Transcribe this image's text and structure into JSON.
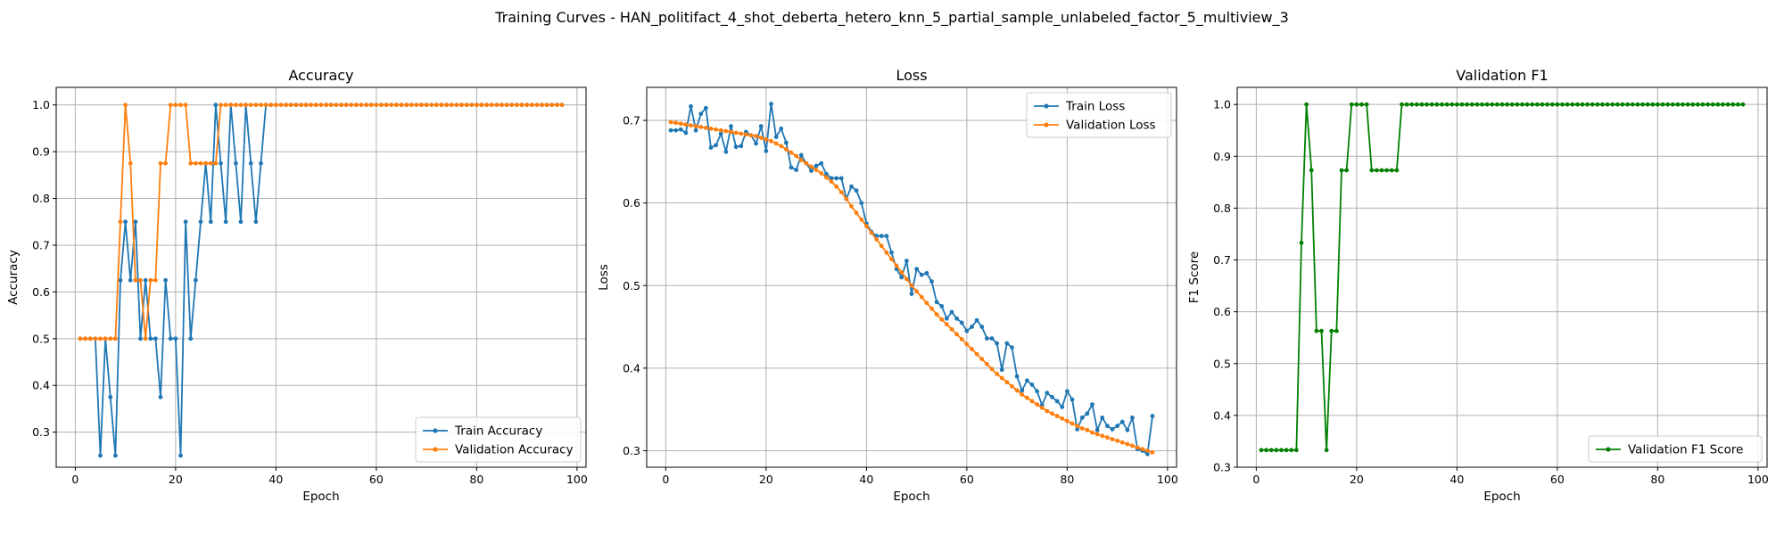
{
  "figure": {
    "suptitle": "Training Curves - HAN_politifact_4_shot_deberta_hetero_knn_5_partial_sample_unlabeled_factor_5_multiview_3"
  },
  "colors": {
    "train": "#1f77b4",
    "validation": "#ff7f0e",
    "f1": "#008000"
  },
  "chart_data": [
    {
      "type": "line",
      "title": "Accuracy",
      "xlabel": "Epoch",
      "ylabel": "Accuracy",
      "xlim": [
        -3.8,
        101.8
      ],
      "ylim": [
        0.225,
        1.0375
      ],
      "xticks": [
        0,
        20,
        40,
        60,
        80,
        100
      ],
      "yticks": [
        0.3,
        0.4,
        0.5,
        0.6,
        0.7,
        0.8,
        0.9,
        1.0
      ],
      "grid": true,
      "legend_position": "lower-right",
      "series": [
        {
          "name": "Train Accuracy",
          "color": "#1f77b4",
          "x": [
            1,
            2,
            3,
            4,
            5,
            6,
            7,
            8,
            9,
            10,
            11,
            12,
            13,
            14,
            15,
            16,
            17,
            18,
            19,
            20,
            21,
            22,
            23,
            24,
            25,
            26,
            27,
            28,
            29,
            30,
            31,
            32,
            33,
            34,
            35,
            36,
            37,
            38,
            39,
            40,
            41,
            42,
            43,
            44,
            45,
            46,
            47,
            48,
            49,
            50,
            51,
            52,
            53,
            54,
            55,
            56,
            57,
            58,
            59,
            60,
            61,
            62,
            63,
            64,
            65,
            66,
            67,
            68,
            69,
            70,
            71,
            72,
            73,
            74,
            75,
            76,
            77,
            78,
            79,
            80,
            81,
            82,
            83,
            84,
            85,
            86,
            87,
            88,
            89,
            90,
            91,
            92,
            93,
            94,
            95,
            96,
            97
          ],
          "y": [
            0.5,
            0.5,
            0.5,
            0.5,
            0.25,
            0.5,
            0.375,
            0.25,
            0.625,
            0.75,
            0.625,
            0.75,
            0.5,
            0.625,
            0.5,
            0.5,
            0.375,
            0.625,
            0.5,
            0.5,
            0.25,
            0.75,
            0.5,
            0.625,
            0.75,
            0.875,
            0.75,
            1.0,
            0.875,
            0.75,
            1.0,
            0.875,
            0.75,
            1.0,
            0.875,
            0.75,
            0.875,
            1.0,
            1.0,
            1.0,
            1.0,
            1.0,
            1.0,
            1.0,
            1.0,
            1.0,
            1.0,
            1.0,
            1.0,
            1.0,
            1.0,
            1.0,
            1.0,
            1.0,
            1.0,
            1.0,
            1.0,
            1.0,
            1.0,
            1.0,
            1.0,
            1.0,
            1.0,
            1.0,
            1.0,
            1.0,
            1.0,
            1.0,
            1.0,
            1.0,
            1.0,
            1.0,
            1.0,
            1.0,
            1.0,
            1.0,
            1.0,
            1.0,
            1.0,
            1.0,
            1.0,
            1.0,
            1.0,
            1.0,
            1.0,
            1.0,
            1.0,
            1.0,
            1.0,
            1.0,
            1.0,
            1.0,
            1.0,
            1.0,
            1.0,
            1.0,
            1.0
          ]
        },
        {
          "name": "Validation Accuracy",
          "color": "#ff7f0e",
          "x": [
            1,
            2,
            3,
            4,
            5,
            6,
            7,
            8,
            9,
            10,
            11,
            12,
            13,
            14,
            15,
            16,
            17,
            18,
            19,
            20,
            21,
            22,
            23,
            24,
            25,
            26,
            27,
            28,
            29,
            30,
            31,
            32,
            33,
            34,
            35,
            36,
            37,
            38,
            39,
            40,
            41,
            42,
            43,
            44,
            45,
            46,
            47,
            48,
            49,
            50,
            51,
            52,
            53,
            54,
            55,
            56,
            57,
            58,
            59,
            60,
            61,
            62,
            63,
            64,
            65,
            66,
            67,
            68,
            69,
            70,
            71,
            72,
            73,
            74,
            75,
            76,
            77,
            78,
            79,
            80,
            81,
            82,
            83,
            84,
            85,
            86,
            87,
            88,
            89,
            90,
            91,
            92,
            93,
            94,
            95,
            96,
            97
          ],
          "y": [
            0.5,
            0.5,
            0.5,
            0.5,
            0.5,
            0.5,
            0.5,
            0.5,
            0.75,
            1.0,
            0.875,
            0.625,
            0.625,
            0.5,
            0.625,
            0.625,
            0.875,
            0.875,
            1.0,
            1.0,
            1.0,
            1.0,
            0.875,
            0.875,
            0.875,
            0.875,
            0.875,
            0.875,
            1.0,
            1.0,
            1.0,
            1.0,
            1.0,
            1.0,
            1.0,
            1.0,
            1.0,
            1.0,
            1.0,
            1.0,
            1.0,
            1.0,
            1.0,
            1.0,
            1.0,
            1.0,
            1.0,
            1.0,
            1.0,
            1.0,
            1.0,
            1.0,
            1.0,
            1.0,
            1.0,
            1.0,
            1.0,
            1.0,
            1.0,
            1.0,
            1.0,
            1.0,
            1.0,
            1.0,
            1.0,
            1.0,
            1.0,
            1.0,
            1.0,
            1.0,
            1.0,
            1.0,
            1.0,
            1.0,
            1.0,
            1.0,
            1.0,
            1.0,
            1.0,
            1.0,
            1.0,
            1.0,
            1.0,
            1.0,
            1.0,
            1.0,
            1.0,
            1.0,
            1.0,
            1.0,
            1.0,
            1.0,
            1.0,
            1.0,
            1.0,
            1.0,
            1.0
          ]
        }
      ]
    },
    {
      "type": "line",
      "title": "Loss",
      "xlabel": "Epoch",
      "ylabel": "Loss",
      "xlim": [
        -3.8,
        101.8
      ],
      "ylim": [
        0.28,
        0.74
      ],
      "xticks": [
        0,
        20,
        40,
        60,
        80,
        100
      ],
      "yticks": [
        0.3,
        0.4,
        0.5,
        0.6,
        0.7
      ],
      "grid": true,
      "legend_position": "upper-right",
      "series": [
        {
          "name": "Train Loss",
          "color": "#1f77b4",
          "x": [
            1,
            2,
            3,
            4,
            5,
            6,
            7,
            8,
            9,
            10,
            11,
            12,
            13,
            14,
            15,
            16,
            17,
            18,
            19,
            20,
            21,
            22,
            23,
            24,
            25,
            26,
            27,
            28,
            29,
            30,
            31,
            32,
            33,
            34,
            35,
            36,
            37,
            38,
            39,
            40,
            41,
            42,
            43,
            44,
            45,
            46,
            47,
            48,
            49,
            50,
            51,
            52,
            53,
            54,
            55,
            56,
            57,
            58,
            59,
            60,
            61,
            62,
            63,
            64,
            65,
            66,
            67,
            68,
            69,
            70,
            71,
            72,
            73,
            74,
            75,
            76,
            77,
            78,
            79,
            80,
            81,
            82,
            83,
            84,
            85,
            86,
            87,
            88,
            89,
            90,
            91,
            92,
            93,
            94,
            95,
            96,
            97
          ],
          "y": [
            0.688,
            0.688,
            0.689,
            0.685,
            0.717,
            0.688,
            0.708,
            0.715,
            0.667,
            0.67,
            0.684,
            0.662,
            0.693,
            0.668,
            0.669,
            0.686,
            0.682,
            0.672,
            0.693,
            0.663,
            0.72,
            0.68,
            0.69,
            0.673,
            0.643,
            0.64,
            0.658,
            0.648,
            0.639,
            0.645,
            0.648,
            0.635,
            0.63,
            0.63,
            0.63,
            0.605,
            0.62,
            0.615,
            0.6,
            0.575,
            0.565,
            0.56,
            0.56,
            0.56,
            0.54,
            0.52,
            0.51,
            0.53,
            0.49,
            0.52,
            0.513,
            0.515,
            0.505,
            0.48,
            0.475,
            0.46,
            0.468,
            0.46,
            0.455,
            0.445,
            0.45,
            0.458,
            0.45,
            0.436,
            0.436,
            0.43,
            0.398,
            0.43,
            0.425,
            0.39,
            0.373,
            0.385,
            0.38,
            0.372,
            0.355,
            0.37,
            0.365,
            0.36,
            0.353,
            0.372,
            0.362,
            0.326,
            0.34,
            0.345,
            0.356,
            0.325,
            0.34,
            0.33,
            0.326,
            0.33,
            0.335,
            0.325,
            0.34,
            0.302,
            0.3,
            0.296,
            0.342
          ]
        },
        {
          "name": "Validation Loss",
          "color": "#ff7f0e",
          "x": [
            1,
            2,
            3,
            4,
            5,
            6,
            7,
            8,
            9,
            10,
            11,
            12,
            13,
            14,
            15,
            16,
            17,
            18,
            19,
            20,
            21,
            22,
            23,
            24,
            25,
            26,
            27,
            28,
            29,
            30,
            31,
            32,
            33,
            34,
            35,
            36,
            37,
            38,
            39,
            40,
            41,
            42,
            43,
            44,
            45,
            46,
            47,
            48,
            49,
            50,
            51,
            52,
            53,
            54,
            55,
            56,
            57,
            58,
            59,
            60,
            61,
            62,
            63,
            64,
            65,
            66,
            67,
            68,
            69,
            70,
            71,
            72,
            73,
            74,
            75,
            76,
            77,
            78,
            79,
            80,
            81,
            82,
            83,
            84,
            85,
            86,
            87,
            88,
            89,
            90,
            91,
            92,
            93,
            94,
            95,
            96,
            97
          ],
          "y": [
            0.698,
            0.697,
            0.696,
            0.695,
            0.694,
            0.693,
            0.692,
            0.691,
            0.69,
            0.689,
            0.688,
            0.687,
            0.686,
            0.685,
            0.684,
            0.683,
            0.682,
            0.681,
            0.679,
            0.677,
            0.675,
            0.672,
            0.669,
            0.665,
            0.661,
            0.657,
            0.652,
            0.648,
            0.644,
            0.64,
            0.636,
            0.631,
            0.626,
            0.62,
            0.613,
            0.605,
            0.596,
            0.588,
            0.58,
            0.572,
            0.564,
            0.556,
            0.548,
            0.54,
            0.532,
            0.524,
            0.516,
            0.508,
            0.5,
            0.493,
            0.486,
            0.479,
            0.472,
            0.465,
            0.459,
            0.453,
            0.447,
            0.441,
            0.435,
            0.429,
            0.423,
            0.417,
            0.411,
            0.405,
            0.399,
            0.393,
            0.388,
            0.383,
            0.378,
            0.373,
            0.368,
            0.364,
            0.36,
            0.356,
            0.352,
            0.348,
            0.345,
            0.342,
            0.339,
            0.336,
            0.333,
            0.33,
            0.327,
            0.325,
            0.322,
            0.32,
            0.318,
            0.316,
            0.314,
            0.312,
            0.31,
            0.308,
            0.306,
            0.304,
            0.302,
            0.3,
            0.298
          ]
        }
      ]
    },
    {
      "type": "line",
      "title": "Validation F1",
      "xlabel": "Epoch",
      "ylabel": "F1 Score",
      "xlim": [
        -3.8,
        101.8
      ],
      "ylim": [
        0.3,
        1.033
      ],
      "xticks": [
        0,
        20,
        40,
        60,
        80,
        100
      ],
      "yticks": [
        0.3,
        0.4,
        0.5,
        0.6,
        0.7,
        0.8,
        0.9,
        1.0
      ],
      "grid": true,
      "legend_position": "lower-right",
      "series": [
        {
          "name": "Validation F1 Score",
          "color": "#008000",
          "x": [
            1,
            2,
            3,
            4,
            5,
            6,
            7,
            8,
            9,
            10,
            11,
            12,
            13,
            14,
            15,
            16,
            17,
            18,
            19,
            20,
            21,
            22,
            23,
            24,
            25,
            26,
            27,
            28,
            29,
            30,
            31,
            32,
            33,
            34,
            35,
            36,
            37,
            38,
            39,
            40,
            41,
            42,
            43,
            44,
            45,
            46,
            47,
            48,
            49,
            50,
            51,
            52,
            53,
            54,
            55,
            56,
            57,
            58,
            59,
            60,
            61,
            62,
            63,
            64,
            65,
            66,
            67,
            68,
            69,
            70,
            71,
            72,
            73,
            74,
            75,
            76,
            77,
            78,
            79,
            80,
            81,
            82,
            83,
            84,
            85,
            86,
            87,
            88,
            89,
            90,
            91,
            92,
            93,
            94,
            95,
            96,
            97
          ],
          "y": [
            0.333,
            0.333,
            0.333,
            0.333,
            0.333,
            0.333,
            0.333,
            0.333,
            0.733,
            1.0,
            0.873,
            0.563,
            0.563,
            0.333,
            0.563,
            0.563,
            0.873,
            0.873,
            1.0,
            1.0,
            1.0,
            1.0,
            0.873,
            0.873,
            0.873,
            0.873,
            0.873,
            0.873,
            1.0,
            1.0,
            1.0,
            1.0,
            1.0,
            1.0,
            1.0,
            1.0,
            1.0,
            1.0,
            1.0,
            1.0,
            1.0,
            1.0,
            1.0,
            1.0,
            1.0,
            1.0,
            1.0,
            1.0,
            1.0,
            1.0,
            1.0,
            1.0,
            1.0,
            1.0,
            1.0,
            1.0,
            1.0,
            1.0,
            1.0,
            1.0,
            1.0,
            1.0,
            1.0,
            1.0,
            1.0,
            1.0,
            1.0,
            1.0,
            1.0,
            1.0,
            1.0,
            1.0,
            1.0,
            1.0,
            1.0,
            1.0,
            1.0,
            1.0,
            1.0,
            1.0,
            1.0,
            1.0,
            1.0,
            1.0,
            1.0,
            1.0,
            1.0,
            1.0,
            1.0,
            1.0,
            1.0,
            1.0,
            1.0,
            1.0,
            1.0,
            1.0,
            1.0
          ]
        }
      ]
    }
  ]
}
